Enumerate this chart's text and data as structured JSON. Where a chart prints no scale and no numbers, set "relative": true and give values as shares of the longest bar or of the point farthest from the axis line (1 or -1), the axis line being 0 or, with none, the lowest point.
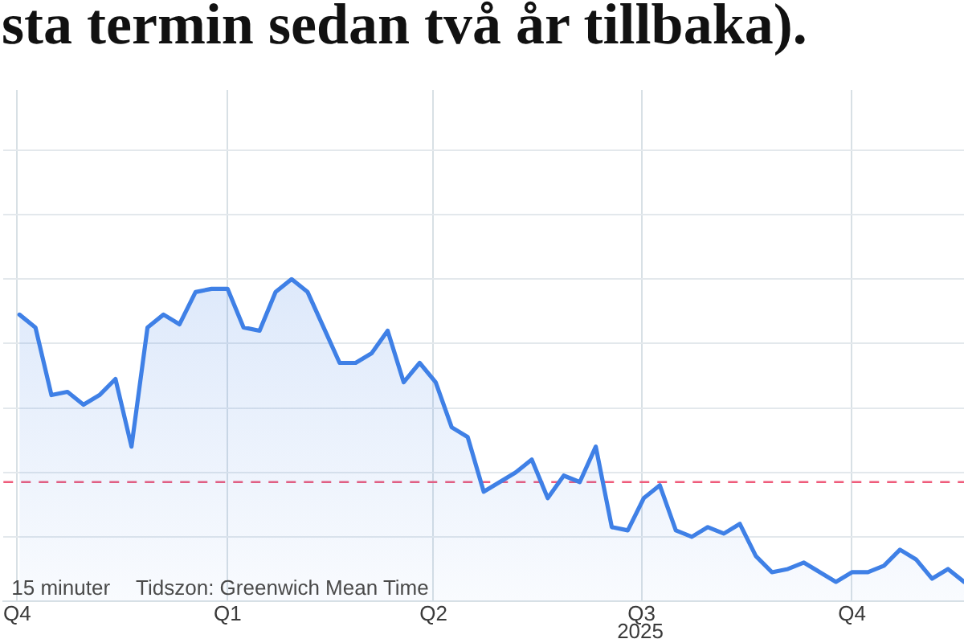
{
  "chart_data": {
    "type": "area",
    "title": "sta termin sedan två år tillbaka).",
    "annotations": [
      "15 minuter",
      "Tidszon: Greenwich Mean Time",
      "2025"
    ],
    "relative": true,
    "grid": true,
    "x": [
      "2024-10-02",
      "2024-10-09",
      "2024-10-16",
      "2024-10-23",
      "2024-10-30",
      "2024-11-06",
      "2024-11-13",
      "2024-11-20",
      "2024-11-27",
      "2024-12-04",
      "2024-12-11",
      "2024-12-18",
      "2024-12-25",
      "2025-01-01",
      "2025-01-08",
      "2025-01-15",
      "2025-01-22",
      "2025-01-29",
      "2025-02-05",
      "2025-02-12",
      "2025-02-19",
      "2025-02-26",
      "2025-03-05",
      "2025-03-12",
      "2025-03-19",
      "2025-03-26",
      "2025-04-02",
      "2025-04-09",
      "2025-04-16",
      "2025-04-23",
      "2025-04-30",
      "2025-05-07",
      "2025-05-14",
      "2025-05-21",
      "2025-05-28",
      "2025-06-04",
      "2025-06-11",
      "2025-06-18",
      "2025-06-25",
      "2025-07-02",
      "2025-07-09",
      "2025-07-16",
      "2025-07-23",
      "2025-07-30",
      "2025-08-06",
      "2025-08-13",
      "2025-08-20",
      "2025-08-27",
      "2025-09-03",
      "2025-09-10",
      "2025-09-17",
      "2025-09-24",
      "2025-10-01",
      "2025-10-08",
      "2025-10-15",
      "2025-10-22",
      "2025-10-29",
      "2025-11-05",
      "2025-11-12",
      "2025-11-19"
    ],
    "color": "#3f80e6",
    "values": [
      0.89,
      0.85,
      0.64,
      0.65,
      0.61,
      0.64,
      0.69,
      0.48,
      0.85,
      0.89,
      0.86,
      0.96,
      0.97,
      0.97,
      0.85,
      0.84,
      0.96,
      1,
      0.96,
      0.85,
      0.74,
      0.74,
      0.77,
      0.84,
      0.68,
      0.74,
      0.68,
      0.54,
      0.51,
      0.34,
      0.37,
      0.4,
      0.44,
      0.32,
      0.39,
      0.37,
      0.48,
      0.23,
      0.22,
      0.32,
      0.36,
      0.22,
      0.2,
      0.23,
      0.21,
      0.24,
      0.14,
      0.09,
      0.1,
      0.12,
      0.09,
      0.06,
      0.09,
      0.09,
      0.11,
      0.16,
      0.13,
      0.07,
      0.1,
      0.06
    ],
    "xlim": [
      "2024-09-25",
      "2025-11-19"
    ],
    "xticks": [
      {
        "value": "2024-10-01",
        "label": "Q4"
      },
      {
        "value": "2025-01-01",
        "label": "Q1"
      },
      {
        "value": "2025-04-01",
        "label": "Q2"
      },
      {
        "value": "2025-07-01",
        "label": "Q3"
      },
      {
        "value": "2025-10-01",
        "label": "Q4"
      }
    ],
    "ref_lines": [
      {
        "axis": "y",
        "value": 0.37,
        "color": "#ef5b7a",
        "line_style": "dashed"
      }
    ]
  }
}
